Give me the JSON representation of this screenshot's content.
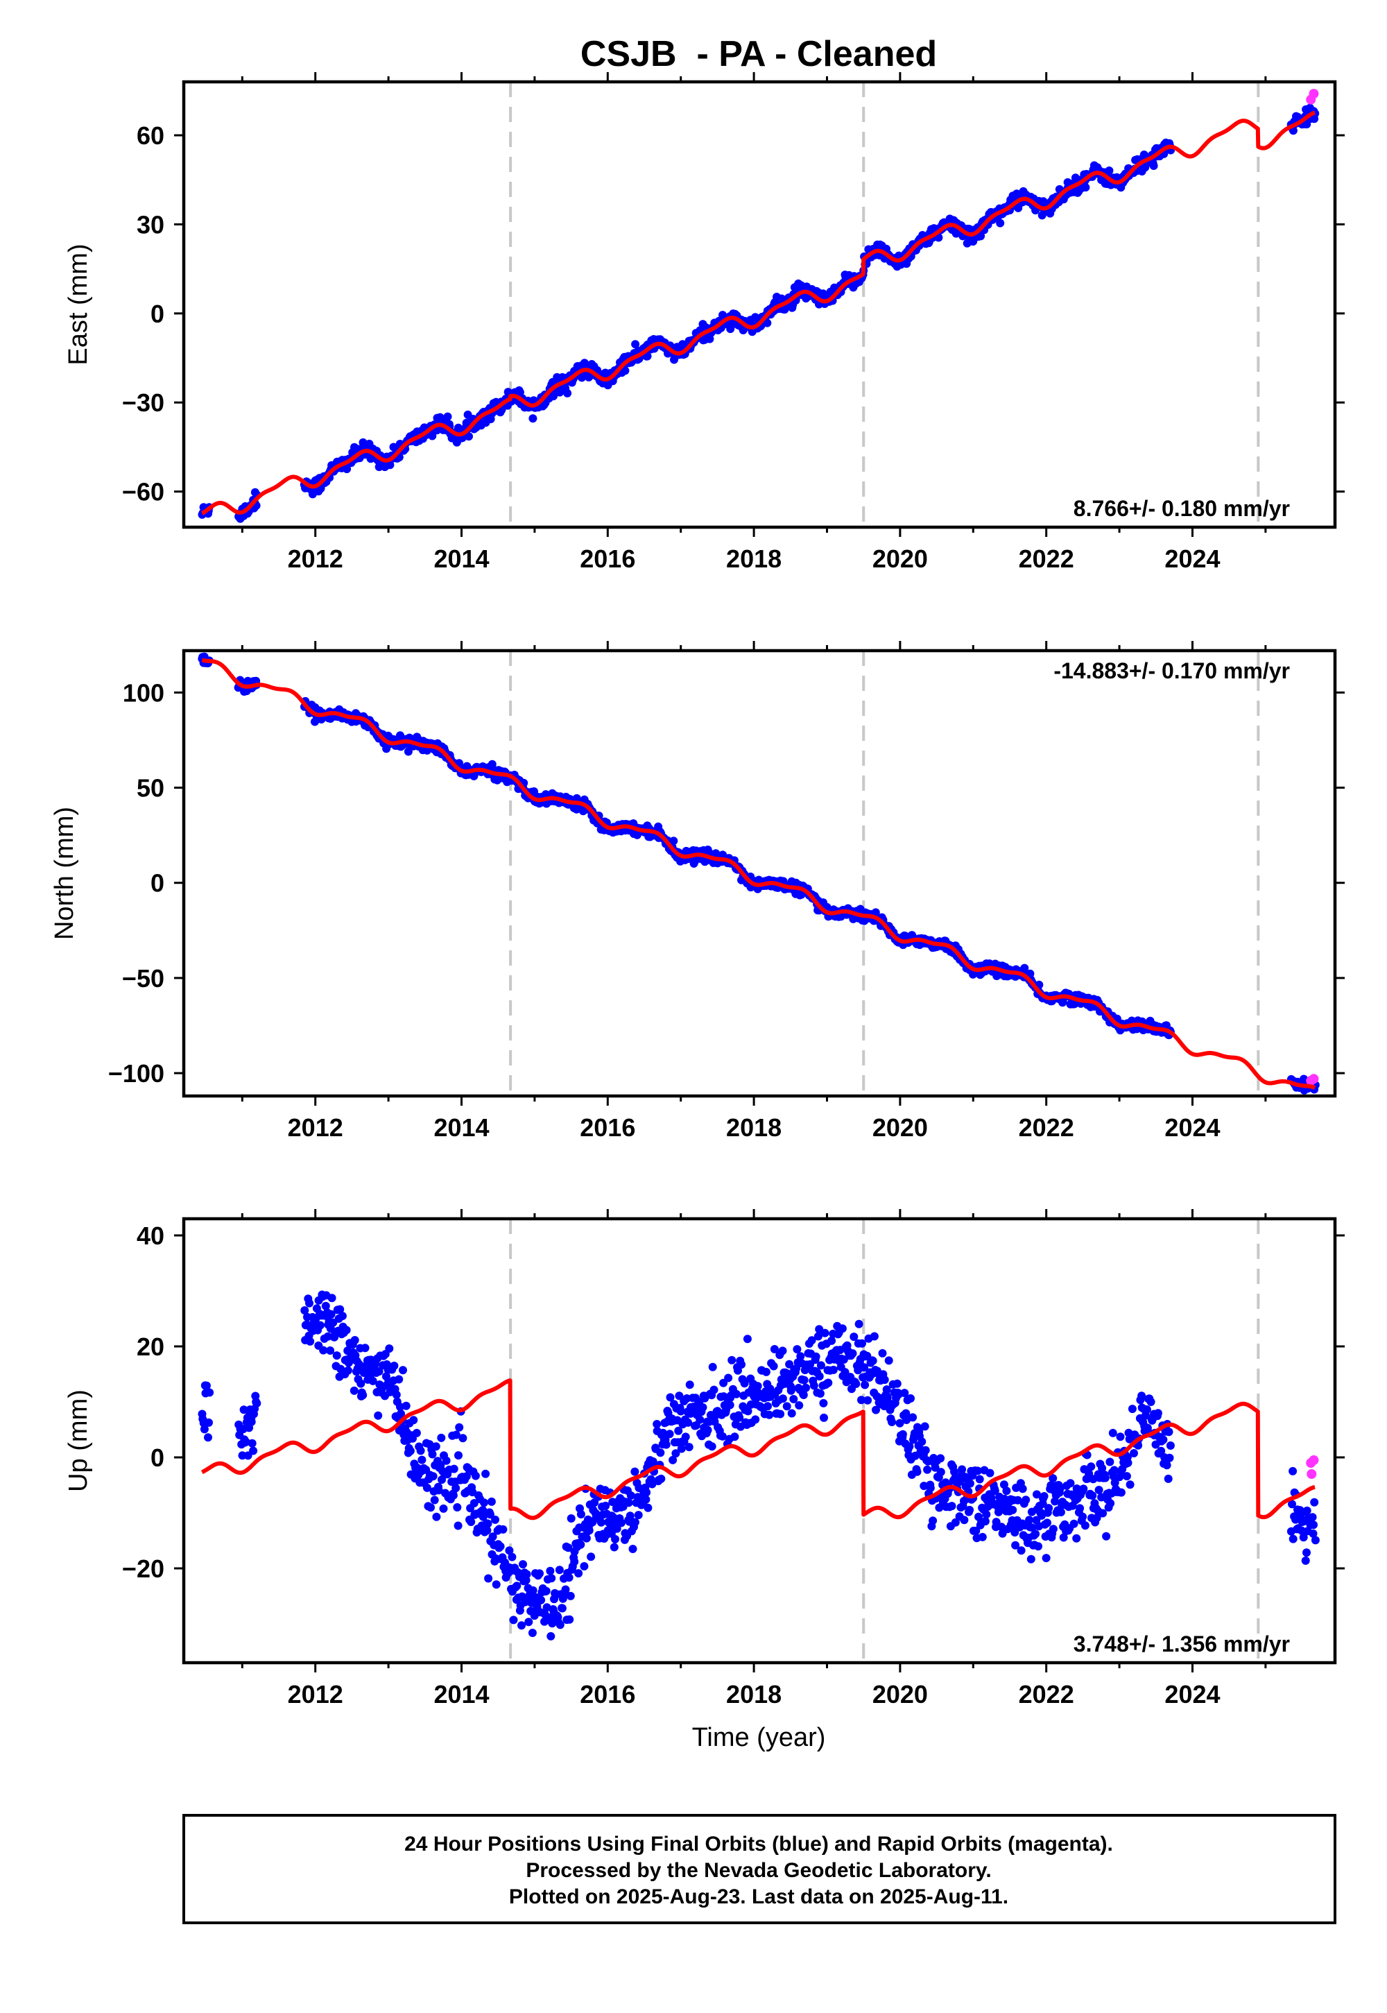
{
  "chart_data": {
    "type": "scatter",
    "title": "CSJB  - PA - Cleaned",
    "xlabel": "Time (year)",
    "xlim": [
      2010.2,
      2025.95
    ],
    "x_ticks": [
      "2012",
      "2014",
      "2016",
      "2018",
      "2020",
      "2022",
      "2024"
    ],
    "grid": false,
    "step_epochs": [
      2014.67,
      2019.5,
      2024.9
    ],
    "colors": {
      "final_orbits": "#0000ff",
      "rapid_orbits": "#ff33ff",
      "model": "#ff0000",
      "step_lines": "#c8c8c8"
    },
    "panels": [
      {
        "id": "east",
        "ylabel": "East (mm)",
        "ylim": [
          -72,
          78
        ],
        "y_ticks": [
          "−60",
          "−30",
          "0",
          "30",
          "60"
        ],
        "rate_label": "8.766+/- 0.180 mm/yr",
        "rate_position": "bottom-right",
        "rate_mm_yr": 8.766,
        "seasonal_amplitude": 2.5,
        "noise": 1.3,
        "offsets": [
          0,
          1,
          6,
          0
        ],
        "model_anchor": {
          "year": 2010.5,
          "value": -68
        }
      },
      {
        "id": "north",
        "ylabel": "North (mm)",
        "ylim": [
          -112,
          122
        ],
        "y_ticks": [
          "100",
          "50",
          "0",
          "−50",
          "−100"
        ],
        "rate_label": "-14.883+/- 0.170 mm/yr",
        "rate_position": "top-right",
        "rate_mm_yr": -14.883,
        "seasonal_amplitude": 3.0,
        "noise": 1.4,
        "offsets": [
          0,
          0,
          0,
          0
        ],
        "model_anchor": {
          "year": 2010.5,
          "value": 115
        }
      },
      {
        "id": "up",
        "ylabel": "Up (mm)",
        "ylim": [
          -37,
          43
        ],
        "y_ticks": [
          "40",
          "20",
          "0",
          "−20"
        ],
        "rate_label": "3.748+/- 1.356 mm/yr",
        "rate_position": "bottom-right",
        "rate_mm_yr": 3.748,
        "seasonal_amplitude": 2.0,
        "model_steps": [
          {
            "start": 2010.5,
            "value": -3.0
          },
          {
            "start": 2014.67,
            "value": -10.5
          },
          {
            "start": 2019.5,
            "value": -11.0
          },
          {
            "start": 2024.9,
            "value": -9.5
          }
        ],
        "observed_mean_points": [
          [
            2010.5,
            8
          ],
          [
            2011.0,
            3
          ],
          [
            2011.8,
            26
          ],
          [
            2012.3,
            24
          ],
          [
            2012.6,
            14
          ],
          [
            2013.0,
            16
          ],
          [
            2013.4,
            -2
          ],
          [
            2014.0,
            -4
          ],
          [
            2014.4,
            -14
          ],
          [
            2014.8,
            -25
          ],
          [
            2015.3,
            -26
          ],
          [
            2015.7,
            -12
          ],
          [
            2016.4,
            -9
          ],
          [
            2016.8,
            5
          ],
          [
            2017.5,
            9
          ],
          [
            2018.2,
            12
          ],
          [
            2018.8,
            16
          ],
          [
            2019.3,
            19
          ],
          [
            2019.9,
            11
          ],
          [
            2020.4,
            -4
          ],
          [
            2021.0,
            -7
          ],
          [
            2021.8,
            -12
          ],
          [
            2022.5,
            -7
          ],
          [
            2023.0,
            -4
          ],
          [
            2023.3,
            8
          ],
          [
            2023.6,
            4
          ],
          [
            2023.9,
            1
          ],
          [
            2025.4,
            -10
          ],
          [
            2025.65,
            -13
          ]
        ]
      }
    ],
    "data_coverage": [
      [
        2010.45,
        2010.55
      ],
      [
        2010.95,
        2011.2
      ],
      [
        2011.85,
        2023.7
      ],
      [
        2025.35,
        2025.68
      ]
    ],
    "rapid_orbit_points": {
      "east": [
        [
          2025.62,
          72
        ],
        [
          2025.66,
          74
        ]
      ],
      "north": [
        [
          2025.62,
          -104
        ],
        [
          2025.66,
          -103
        ]
      ],
      "up": [
        [
          2025.62,
          -1
        ],
        [
          2025.63,
          -3
        ],
        [
          2025.66,
          -0.5
        ]
      ]
    }
  },
  "footer": {
    "line1": "24 Hour Positions Using Final Orbits (blue) and Rapid Orbits (magenta).",
    "line2": "Processed by the Nevada Geodetic Laboratory.",
    "line3": "Plotted on 2025-Aug-23. Last data on 2025-Aug-11."
  }
}
